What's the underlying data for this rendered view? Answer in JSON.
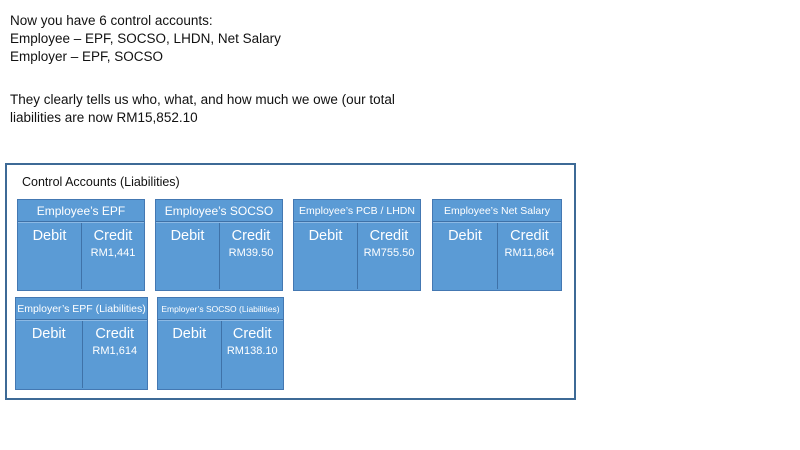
{
  "intro": {
    "para1_lines": [
      "Now you have 6 control accounts:",
      "Employee – EPF, SOCSO, LHDN, Net Salary",
      "Employer – EPF, SOCSO"
    ],
    "para2_lines": [
      "They clearly tells us who, what, and how much we owe (our total",
      "liabilities are now RM15,852.10"
    ]
  },
  "panel": {
    "title": "Control Accounts (Liabilities)",
    "accounts": [
      {
        "name": "Employee’s EPF",
        "debit_label": "Debit",
        "credit_label": "Credit",
        "credit_value": "RM1,441"
      },
      {
        "name": "Employee’s SOCSO",
        "debit_label": "Debit",
        "credit_label": "Credit",
        "credit_value": "RM39.50"
      },
      {
        "name": "Employee’s PCB / LHDN",
        "debit_label": "Debit",
        "credit_label": "Credit",
        "credit_value": "RM755.50"
      },
      {
        "name": "Employee’s Net Salary",
        "debit_label": "Debit",
        "credit_label": "Credit",
        "credit_value": "RM11,864"
      },
      {
        "name": "Employer’s EPF (Liabilities)",
        "debit_label": "Debit",
        "credit_label": "Credit",
        "credit_value": "RM1,614"
      },
      {
        "name": "Employer’s SOCSO (Liabilities)",
        "debit_label": "Debit",
        "credit_label": "Credit",
        "credit_value": "RM138.10"
      }
    ],
    "colors": {
      "card_fill": "#5b9bd5",
      "card_border": "#4478b2",
      "card_divider": "#3f72a8",
      "panel_border": "#3d6a96",
      "card_text": "#ffffff",
      "body_text": "#111111"
    }
  }
}
